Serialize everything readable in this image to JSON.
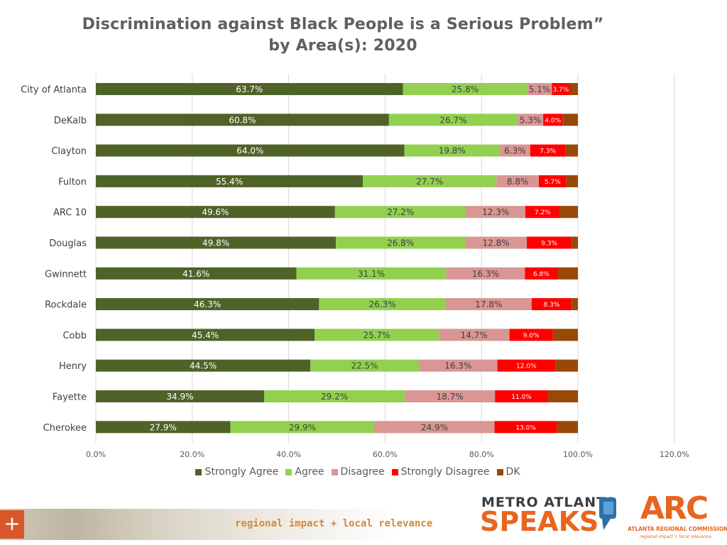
{
  "chart_data": {
    "type": "bar",
    "orientation": "horizontal",
    "stacked": true,
    "title": "Discrimination against Black People is a Serious Problem”",
    "subtitle": "by Area(s): 2020",
    "categories": [
      "City of Atlanta",
      "DeKalb",
      "Clayton",
      "Fulton",
      "ARC 10",
      "Douglas",
      "Gwinnett",
      "Rockdale",
      "Cobb",
      "Henry",
      "Fayette",
      "Cherokee"
    ],
    "series": [
      {
        "name": "Strongly Agree",
        "color": "#4f6228",
        "values": [
          63.7,
          60.8,
          64.0,
          55.4,
          49.6,
          49.8,
          41.6,
          46.3,
          45.4,
          44.5,
          34.9,
          27.9
        ],
        "labels": [
          "63.7%",
          "60.8%",
          "64.0%",
          "55.4%",
          "49.6%",
          "49.8%",
          "41.6%",
          "46.3%",
          "45.4%",
          "44.5%",
          "34.9%",
          "27.9%"
        ]
      },
      {
        "name": "Agree",
        "color": "#92d050",
        "values": [
          25.8,
          26.7,
          19.8,
          27.7,
          27.2,
          26.8,
          31.1,
          26.3,
          25.7,
          22.5,
          29.2,
          29.9
        ],
        "labels": [
          "25.8%",
          "26.7%",
          "19.8%",
          "27.7%",
          "27.2%",
          "26.8%",
          "31.1%",
          "26.3%",
          "25.7%",
          "22.5%",
          "29.2%",
          "29.9%"
        ]
      },
      {
        "name": "Disagree",
        "color": "#d99694",
        "values": [
          5.1,
          5.3,
          6.3,
          8.8,
          12.3,
          12.8,
          16.3,
          17.8,
          14.7,
          16.3,
          18.7,
          24.9
        ],
        "labels": [
          "5.1%",
          "5.3%",
          "6.3%",
          "8.8%",
          "12.3%",
          "12.8%",
          "16.3%",
          "17.8%",
          "14.7%",
          "16.3%",
          "18.7%",
          "24.9%"
        ]
      },
      {
        "name": "Strongly Disagree",
        "color": "#ff0000",
        "values": [
          3.7,
          4.0,
          7.3,
          5.7,
          7.2,
          9.3,
          6.8,
          8.3,
          9.0,
          12.0,
          11.0,
          13.0
        ],
        "labels": [
          "3.7%",
          "4.0%",
          "7.3%",
          "5.7%",
          "7.2%",
          "9.3%",
          "6.8%",
          "8.3%",
          "9.0%",
          "12.0%",
          "11.0%",
          "13.0%"
        ]
      },
      {
        "name": "DK",
        "color": "#984807",
        "values": [
          1.7,
          3.2,
          2.6,
          2.4,
          3.7,
          1.3,
          4.2,
          1.3,
          5.2,
          4.7,
          6.2,
          4.3
        ],
        "labels": []
      }
    ],
    "xlim": [
      0,
      120
    ],
    "xticks": [
      "0.0%",
      "20.0%",
      "40.0%",
      "60.0%",
      "80.0%",
      "100.0%",
      "120.0%"
    ],
    "xtick_values": [
      0,
      20,
      40,
      60,
      80,
      100,
      120
    ],
    "grid": "vertical",
    "legend_position": "bottom"
  },
  "footer": {
    "tagline": "regional impact + local relevance",
    "plus_symbol": "+",
    "logo_metro_top": "METRO ATLANTA",
    "logo_metro_bottom": "SPEAKS",
    "logo_arc_mark": "ARC",
    "logo_arc_name": "ATLANTA REGIONAL COMMISSION",
    "logo_arc_tagline": "regional impact + local relevance"
  }
}
